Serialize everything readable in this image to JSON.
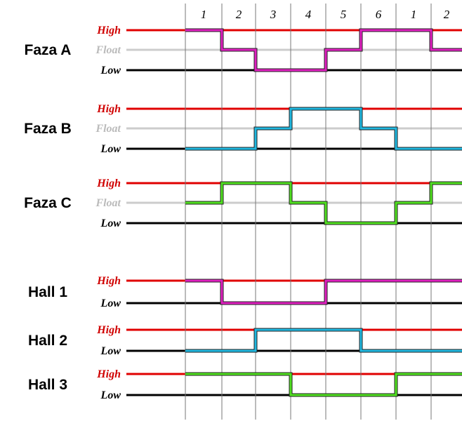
{
  "steps": [
    "1",
    "2",
    "3",
    "4",
    "5",
    "6",
    "1",
    "2"
  ],
  "rows": [
    {
      "name": "Faza A",
      "levels": [
        "High",
        "Float",
        "Low"
      ]
    },
    {
      "name": "Faza B",
      "levels": [
        "High",
        "Float",
        "Low"
      ]
    },
    {
      "name": "Faza C",
      "levels": [
        "High",
        "Float",
        "Low"
      ]
    },
    {
      "name": "Hall 1",
      "levels": [
        "High",
        "Low"
      ]
    },
    {
      "name": "Hall 2",
      "levels": [
        "High",
        "Low"
      ]
    },
    {
      "name": "Hall 3",
      "levels": [
        "High",
        "Low"
      ]
    }
  ]
}
